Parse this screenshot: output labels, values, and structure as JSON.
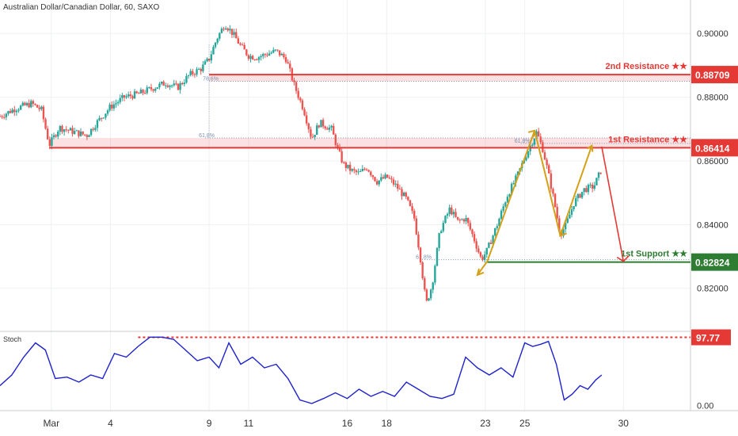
{
  "title": "Australian Dollar/Canadian Dollar, 60, SAXO",
  "chart_data": [
    {
      "type": "candlestick",
      "title": "Australian Dollar/Canadian Dollar, 60, SAXO",
      "y_ticks": [
        "0.90000",
        "0.88000",
        "0.86000",
        "0.84000",
        "0.82000"
      ],
      "y_tick_values": [
        0.9,
        0.88,
        0.86,
        0.84,
        0.82
      ],
      "ylim": [
        0.8065,
        0.9105
      ],
      "x_ticks": [
        "Mar",
        "4",
        "9",
        "11",
        "16",
        "18",
        "23",
        "25",
        "30"
      ],
      "x_tick_values": [
        1,
        4,
        9,
        11,
        16,
        18,
        23,
        25,
        30
      ],
      "xlim": [
        -1.6,
        33.4
      ],
      "price_path": [
        [
          -1.6,
          0.874
        ],
        [
          -0.8,
          0.8765
        ],
        [
          0.0,
          0.878
        ],
        [
          0.5,
          0.876
        ],
        [
          0.9,
          0.865
        ],
        [
          1.4,
          0.8705
        ],
        [
          2.2,
          0.869
        ],
        [
          2.8,
          0.868
        ],
        [
          3.3,
          0.872
        ],
        [
          4.0,
          0.877
        ],
        [
          4.7,
          0.88
        ],
        [
          5.4,
          0.881
        ],
        [
          6.2,
          0.883
        ],
        [
          6.8,
          0.8845
        ],
        [
          7.4,
          0.883
        ],
        [
          8.0,
          0.887
        ],
        [
          8.6,
          0.889
        ],
        [
          9.0,
          0.892
        ],
        [
          9.4,
          0.8985
        ],
        [
          9.8,
          0.903
        ],
        [
          10.2,
          0.9
        ],
        [
          10.6,
          0.896
        ],
        [
          11.0,
          0.893
        ],
        [
          11.4,
          0.8925
        ],
        [
          11.9,
          0.8935
        ],
        [
          12.4,
          0.8945
        ],
        [
          12.9,
          0.892
        ],
        [
          13.3,
          0.884
        ],
        [
          13.8,
          0.876
        ],
        [
          14.2,
          0.867
        ],
        [
          14.6,
          0.872
        ],
        [
          15.2,
          0.87
        ],
        [
          15.5,
          0.864
        ],
        [
          15.8,
          0.859
        ],
        [
          16.2,
          0.857
        ],
        [
          16.6,
          0.856
        ],
        [
          17.0,
          0.858
        ],
        [
          17.5,
          0.8535
        ],
        [
          18.0,
          0.855
        ],
        [
          18.5,
          0.852
        ],
        [
          19.0,
          0.848
        ],
        [
          19.4,
          0.842
        ],
        [
          19.7,
          0.83
        ],
        [
          20.0,
          0.815
        ],
        [
          20.3,
          0.821
        ],
        [
          20.7,
          0.838
        ],
        [
          21.2,
          0.845
        ],
        [
          21.6,
          0.841
        ],
        [
          22.0,
          0.842
        ],
        [
          22.4,
          0.836
        ],
        [
          22.8,
          0.829
        ],
        [
          23.1,
          0.832
        ],
        [
          23.6,
          0.84
        ],
        [
          24.1,
          0.849
        ],
        [
          24.6,
          0.855
        ],
        [
          25.0,
          0.861
        ],
        [
          25.3,
          0.865
        ],
        [
          25.6,
          0.869
        ],
        [
          25.9,
          0.864
        ],
        [
          26.2,
          0.856
        ],
        [
          26.5,
          0.847
        ],
        [
          26.8,
          0.837
        ],
        [
          27.1,
          0.84
        ],
        [
          27.5,
          0.847
        ],
        [
          28.0,
          0.851
        ],
        [
          28.5,
          0.852
        ],
        [
          28.9,
          0.8575
        ]
      ],
      "price_labels": [
        {
          "label": "2nd Resistance ★★",
          "value": 0.88709,
          "value_text": "0.88709",
          "color": "#e53935"
        },
        {
          "label": "1st Resistance ★★",
          "value": 0.86414,
          "value_text": "0.86414",
          "color": "#e53935"
        },
        {
          "label": "1st Support ★★",
          "value": 0.82824,
          "value_text": "0.82824",
          "color": "#2e7d32"
        }
      ],
      "fib_labels": [
        "78.6%",
        "61.8%",
        "61.8%",
        "61.8%"
      ],
      "projection": [
        [
          28.9,
          0.8645
        ],
        [
          30.0,
          0.8285
        ]
      ]
    },
    {
      "type": "line",
      "title": "Stoch",
      "y_ticks": [
        "0.00"
      ],
      "y_tick_values": [
        0
      ],
      "ylim": [
        -5,
        105
      ],
      "overbought_label": "97.77",
      "overbought_value": 97.77,
      "x": [
        -1.6,
        -1.0,
        -0.4,
        0.2,
        0.7,
        1.2,
        1.8,
        2.4,
        3.0,
        3.6,
        4.2,
        4.8,
        5.4,
        6.0,
        6.6,
        7.2,
        7.8,
        8.4,
        9.0,
        9.5,
        10.0,
        10.6,
        11.2,
        11.8,
        12.4,
        13.0,
        13.6,
        14.2,
        14.8,
        15.4,
        16.0,
        16.6,
        17.2,
        17.8,
        18.4,
        19.0,
        19.6,
        20.2,
        20.8,
        21.4,
        22.0,
        22.6,
        23.2,
        23.8,
        24.4,
        25.0,
        25.4,
        25.8,
        26.2,
        26.6,
        27.0,
        27.4,
        27.8,
        28.2,
        28.6,
        28.9
      ],
      "values": [
        30,
        45,
        70,
        90,
        80,
        40,
        42,
        35,
        45,
        40,
        75,
        70,
        85,
        98,
        98,
        95,
        80,
        65,
        70,
        55,
        90,
        60,
        70,
        55,
        60,
        40,
        10,
        5,
        12,
        20,
        12,
        25,
        15,
        22,
        15,
        35,
        25,
        15,
        12,
        18,
        70,
        55,
        45,
        55,
        42,
        90,
        85,
        88,
        92,
        60,
        10,
        18,
        30,
        25,
        38,
        45
      ]
    }
  ]
}
